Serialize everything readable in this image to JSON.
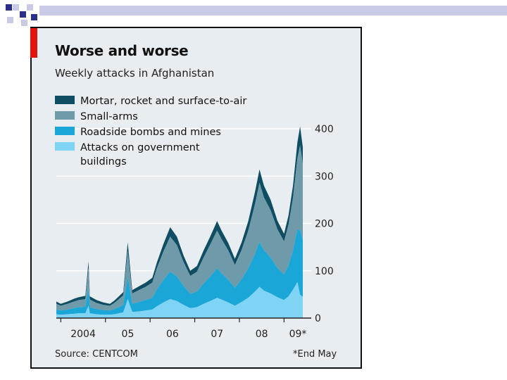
{
  "colors": {
    "deco_dark": "#2b2f8a",
    "deco_light": "#c9cbe6",
    "red_tab": "#e3120b",
    "frame_bg": "#e7edf0",
    "series": [
      "#0f4d63",
      "#6f9aa9",
      "#1aa6d6",
      "#7fd4f5"
    ]
  },
  "header": {
    "title": "Worse and worse",
    "subtitle": "Weekly attacks in Afghanistan"
  },
  "footer": {
    "source": "Source: CENTCOM",
    "note": "*End May"
  },
  "chart_data": {
    "type": "area",
    "stacked": true,
    "title": "Worse and worse",
    "subtitle": "Weekly attacks in Afghanistan",
    "x_tick_labels": [
      "2004",
      "05",
      "06",
      "07",
      "08",
      "09*"
    ],
    "x_range": [
      2003.9,
      2009.42
    ],
    "ylim": [
      0,
      400
    ],
    "y_ticks": [
      0,
      100,
      200,
      300,
      400
    ],
    "grid": true,
    "y_axis_side": "right",
    "legend_position": "top-left",
    "x": [
      2003.9,
      2004.0,
      2004.15,
      2004.3,
      2004.4,
      2004.55,
      2004.62,
      2004.65,
      2004.8,
      2004.95,
      2005.1,
      2005.2,
      2005.3,
      2005.4,
      2005.5,
      2005.6,
      2005.75,
      2005.9,
      2006.05,
      2006.15,
      2006.3,
      2006.45,
      2006.6,
      2006.75,
      2006.9,
      2007.05,
      2007.2,
      2007.35,
      2007.5,
      2007.6,
      2007.75,
      2007.9,
      2008.05,
      2008.2,
      2008.35,
      2008.45,
      2008.55,
      2008.7,
      2008.85,
      2009.0,
      2009.1,
      2009.2,
      2009.3,
      2009.36,
      2009.42
    ],
    "series": [
      {
        "name": "Mortar, rocket and surface-to-air",
        "values": [
          5,
          4,
          5,
          6,
          6,
          7,
          14,
          7,
          6,
          5,
          4,
          5,
          6,
          7,
          18,
          7,
          8,
          9,
          10,
          12,
          16,
          20,
          18,
          14,
          11,
          12,
          15,
          17,
          20,
          18,
          16,
          13,
          16,
          20,
          26,
          28,
          25,
          22,
          18,
          16,
          20,
          26,
          34,
          40,
          36
        ]
      },
      {
        "name": "Small-arms",
        "values": [
          12,
          10,
          12,
          14,
          15,
          16,
          44,
          16,
          13,
          11,
          10,
          13,
          17,
          20,
          56,
          22,
          25,
          28,
          32,
          45,
          60,
          74,
          66,
          50,
          38,
          42,
          55,
          68,
          80,
          72,
          62,
          48,
          62,
          80,
          105,
          125,
          112,
          100,
          82,
          70,
          86,
          110,
          150,
          180,
          160
        ]
      },
      {
        "name": "Roadside bombs and mines",
        "values": [
          10,
          9,
          10,
          12,
          13,
          14,
          36,
          13,
          11,
          10,
          9,
          11,
          13,
          16,
          46,
          17,
          20,
          22,
          25,
          35,
          48,
          58,
          52,
          40,
          30,
          33,
          43,
          52,
          62,
          56,
          48,
          38,
          48,
          62,
          80,
          95,
          85,
          76,
          62,
          54,
          65,
          84,
          112,
          136,
          120
        ]
      },
      {
        "name": "Attacks on government buildings",
        "values": [
          8,
          7,
          8,
          9,
          10,
          10,
          26,
          10,
          8,
          7,
          7,
          8,
          10,
          12,
          40,
          13,
          14,
          16,
          18,
          25,
          33,
          40,
          36,
          28,
          21,
          23,
          30,
          36,
          43,
          39,
          33,
          26,
          34,
          43,
          56,
          66,
          58,
          52,
          44,
          38,
          46,
          60,
          76,
          49,
          45
        ]
      }
    ]
  }
}
